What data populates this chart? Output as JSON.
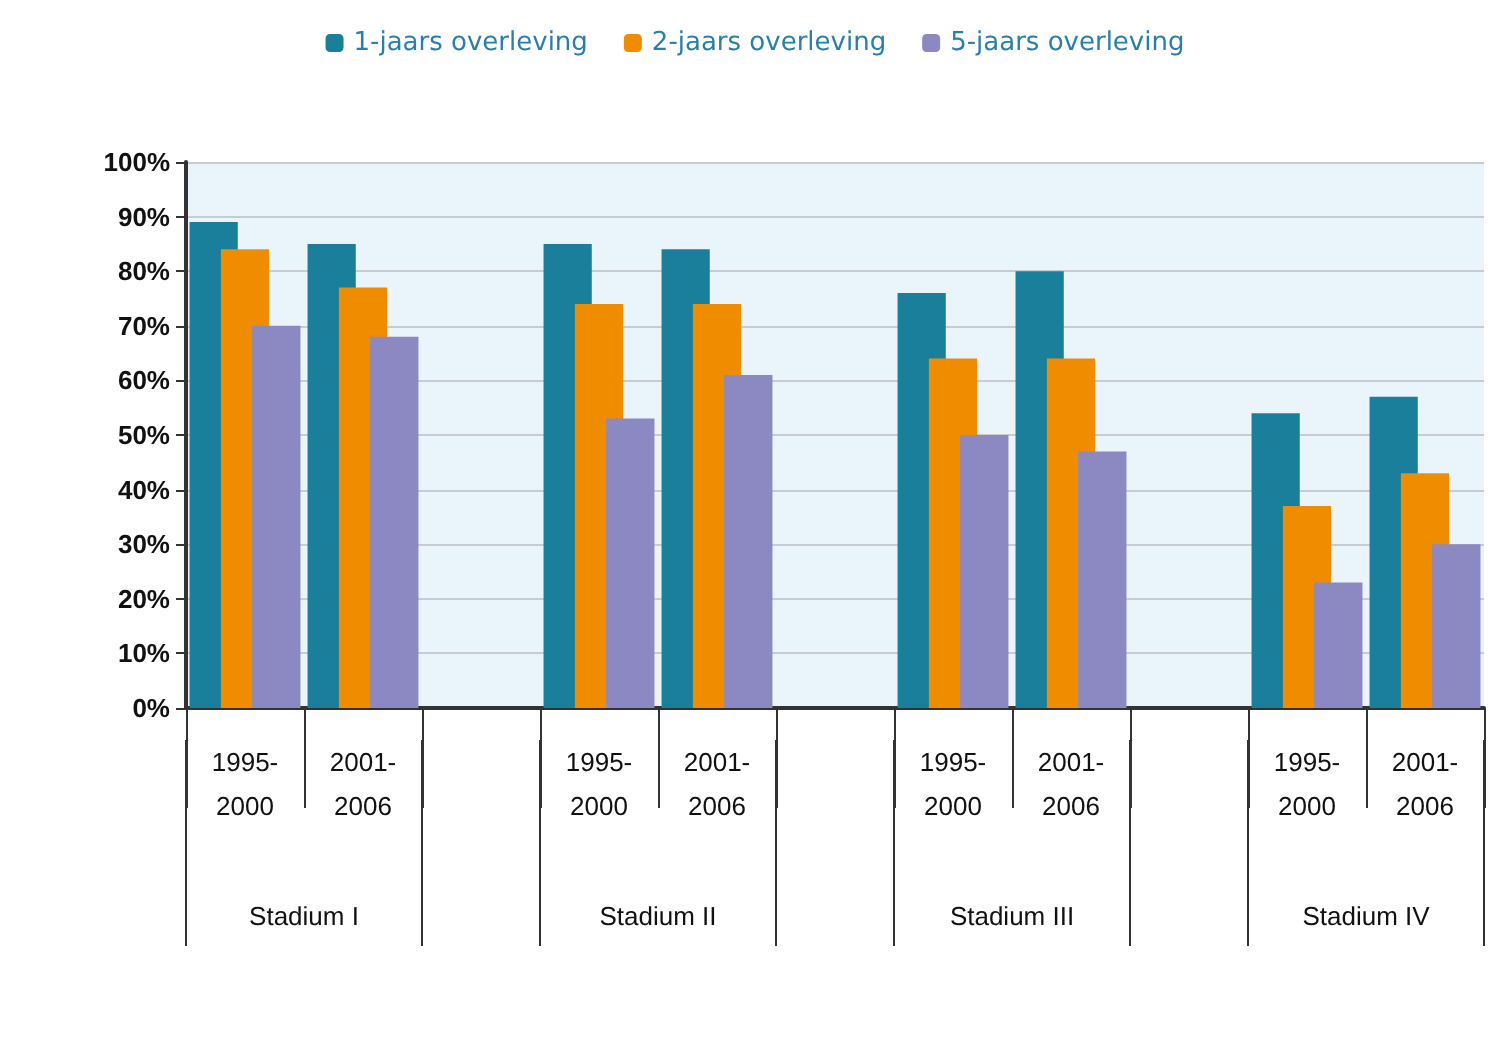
{
  "chart_data": {
    "type": "bar",
    "categories": [
      "1995-2000",
      "2001-2006",
      null,
      "1995-2000",
      "2001-2006",
      null,
      "1995-2000",
      "2001-2006",
      null,
      "1995-2000",
      "2001-2006"
    ],
    "series": [
      {
        "name": "1-jaars overleving",
        "color": "#1a7f9a",
        "values": [
          89,
          85,
          null,
          85,
          84,
          null,
          76,
          80,
          null,
          54,
          57
        ]
      },
      {
        "name": "2-jaars overleving",
        "color": "#f08c00",
        "values": [
          84,
          77,
          null,
          74,
          74,
          null,
          64,
          64,
          null,
          37,
          43
        ]
      },
      {
        "name": "5-jaars overleving",
        "color": "#8b88c2",
        "values": [
          70,
          68,
          null,
          53,
          61,
          null,
          50,
          47,
          null,
          23,
          30
        ]
      }
    ],
    "annotations": [
      "Stadium I",
      "Stadium II",
      "Stadium III",
      "Stadium IV"
    ],
    "ylim": [
      0,
      100
    ],
    "yticks": [
      {
        "value": 0,
        "label": "0%"
      },
      {
        "value": 10,
        "label": "10%"
      },
      {
        "value": 20,
        "label": "20%"
      },
      {
        "value": 30,
        "label": "30%"
      },
      {
        "value": 40,
        "label": "40%"
      },
      {
        "value": 50,
        "label": "50%"
      },
      {
        "value": 60,
        "label": "60%"
      },
      {
        "value": 70,
        "label": "70%"
      },
      {
        "value": 80,
        "label": "80%"
      },
      {
        "value": 90,
        "label": "90%"
      },
      {
        "value": 100,
        "label": "100%"
      }
    ],
    "grid": "y",
    "legend": "top"
  }
}
